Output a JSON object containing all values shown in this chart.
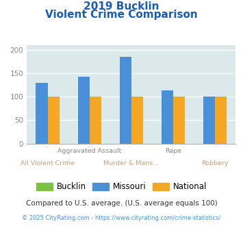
{
  "title_line1": "2019 Bucklin",
  "title_line2": "Violent Crime Comparison",
  "categories": [
    "All Violent Crime",
    "Aggravated Assault",
    "Murder & Mans...",
    "Rape",
    "Robbery"
  ],
  "cat_labels_row1": [
    "",
    "Aggravated Assault",
    "",
    "Rape",
    ""
  ],
  "cat_labels_row2": [
    "All Violent Crime",
    "",
    "Murder & Mans...",
    "",
    "Robbery"
  ],
  "series": {
    "Bucklin": [
      0,
      0,
      0,
      0,
      0
    ],
    "Missouri": [
      130,
      143,
      185,
      113,
      100
    ],
    "National": [
      100,
      100,
      100,
      100,
      100
    ]
  },
  "colors": {
    "Bucklin": "#7dc142",
    "Missouri": "#4a90d9",
    "National": "#f5a623"
  },
  "ylim": [
    0,
    210
  ],
  "yticks": [
    0,
    50,
    100,
    150,
    200
  ],
  "bg_color": "#dce9ea",
  "title_color": "#1a5cb0",
  "grid_color": "#ffffff",
  "bar_width": 0.28,
  "footnote1": "Compared to U.S. average. (U.S. average equals 100)",
  "footnote2": "© 2025 CityRating.com - https://www.cityrating.com/crime-statistics/",
  "footnote1_color": "#333333",
  "footnote2_color": "#4a90d9",
  "tick_color": "#888888",
  "label_row1_color": "#888888",
  "label_row2_color": "#c0a080"
}
